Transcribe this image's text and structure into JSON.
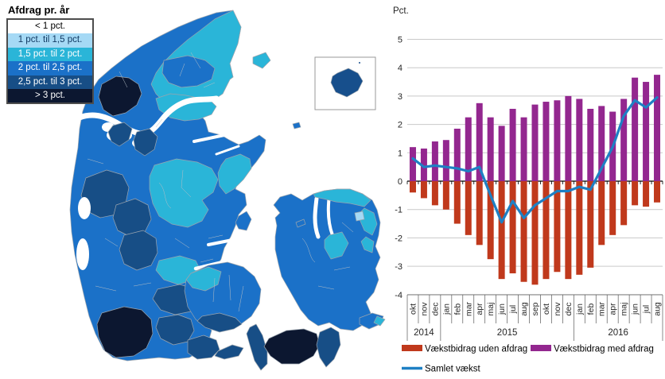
{
  "map": {
    "legend": {
      "title": "Afdrag pr. år",
      "classes": [
        {
          "key": "lt1",
          "label": "< 1 pct.",
          "color": "#ffffff",
          "text_color": "#000000"
        },
        {
          "key": "p1_15",
          "label": "1 pct. til 1,5 pct.",
          "color": "#a5d9f5",
          "text_color": "#123a63"
        },
        {
          "key": "p15_2",
          "label": "1,5 pct. til 2 pct.",
          "color": "#2ab5d8",
          "text_color": "#ffffff"
        },
        {
          "key": "p2_25",
          "label": "2 pct. til 2,5 pct.",
          "color": "#1b71c8",
          "text_color": "#ffffff"
        },
        {
          "key": "p25_3",
          "label": "2,5 pct. til 3 pct.",
          "color": "#174e86",
          "text_color": "#ffffff"
        },
        {
          "key": "gt3",
          "label": "> 3 pct.",
          "color": "#0c1730",
          "text_color": "#ffffff"
        }
      ],
      "bornholm_color": "#174f8c",
      "water_color": "#ffffff"
    }
  },
  "chart_data": {
    "type": "bar",
    "subtype": "stacked bars with line overlay",
    "title": "",
    "xlabel": "",
    "ylabel": "Pct.",
    "ylim": [
      -4,
      5
    ],
    "yticks": [
      5,
      4,
      3,
      2,
      1,
      0,
      -1,
      -2,
      -3,
      -4
    ],
    "grid": true,
    "legend_position": "bottom",
    "categories": [
      "okt",
      "nov",
      "dec",
      "jan",
      "feb",
      "mar",
      "apr",
      "maj",
      "jun",
      "jul",
      "aug",
      "sep",
      "okt",
      "nov",
      "dec",
      "jan",
      "feb",
      "mar",
      "apr",
      "maj",
      "jun",
      "jul",
      "aug"
    ],
    "year_groups": [
      {
        "label": "2014",
        "count": 3
      },
      {
        "label": "2015",
        "count": 12
      },
      {
        "label": "2016",
        "count": 8
      }
    ],
    "series": [
      {
        "name": "Vækstbidrag uden afdrag",
        "type": "bar",
        "color": "#c0391c",
        "values": [
          -0.4,
          -0.6,
          -0.85,
          -1.0,
          -1.5,
          -1.9,
          -2.25,
          -2.75,
          -3.45,
          -3.25,
          -3.55,
          -3.65,
          -3.45,
          -3.2,
          -3.45,
          -3.3,
          -3.05,
          -2.25,
          -1.9,
          -1.55,
          -0.85,
          -0.9,
          -0.75
        ]
      },
      {
        "name": "Vækstbidrag med afdrag",
        "type": "bar",
        "color": "#93278f",
        "values": [
          1.2,
          1.15,
          1.4,
          1.45,
          1.85,
          2.25,
          2.75,
          2.25,
          1.95,
          2.55,
          2.25,
          2.7,
          2.8,
          2.85,
          3.0,
          2.9,
          2.55,
          2.65,
          2.45,
          2.9,
          3.65,
          3.5,
          3.75
        ]
      },
      {
        "name": "Samlet vækst",
        "type": "line",
        "color": "#1e80c4",
        "values": [
          0.8,
          0.5,
          0.55,
          0.5,
          0.45,
          0.35,
          0.5,
          -0.5,
          -1.45,
          -0.7,
          -1.3,
          -0.85,
          -0.6,
          -0.35,
          -0.35,
          -0.2,
          -0.3,
          0.45,
          1.2,
          2.3,
          2.85,
          2.6,
          2.95
        ]
      }
    ]
  }
}
